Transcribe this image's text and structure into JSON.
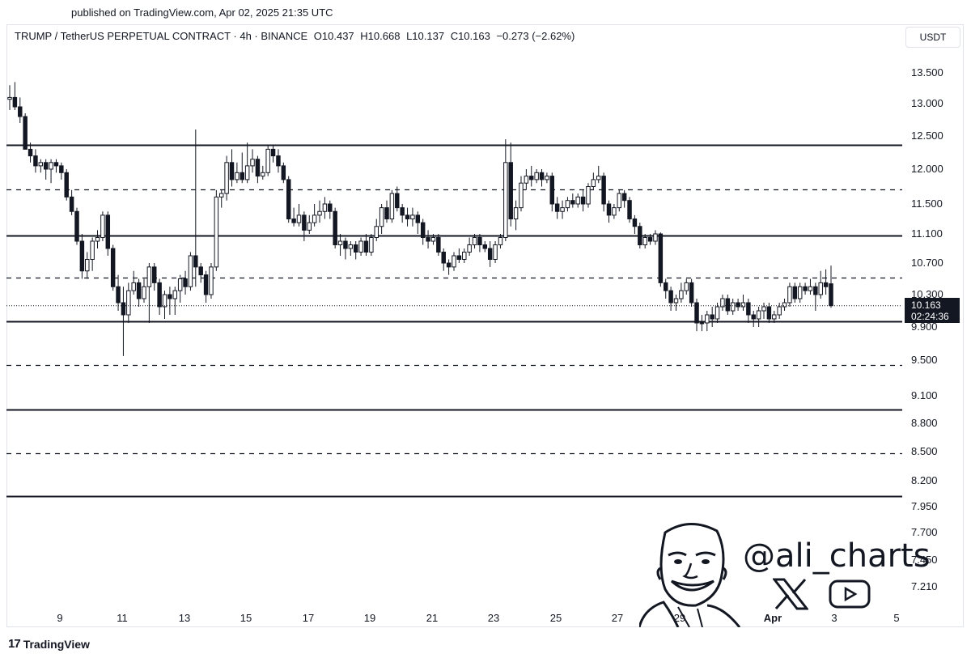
{
  "header": {
    "published": "published on TradingView.com, Apr 02, 2025 21:35 UTC",
    "symbol": "TRUMP / TetherUS PERPETUAL CONTRACT · 4h · BINANCE",
    "open": "O10.437",
    "high": "H10.668",
    "low": "L10.137",
    "close": "C10.163",
    "change": "−0.273 (−2.62%)"
  },
  "unit_label": "USDT",
  "price_tag": {
    "price": "10.163",
    "countdown": "02:24:36"
  },
  "footer": {
    "brand": "TradingView"
  },
  "watermark": {
    "handle": "@ali_charts",
    "icons": [
      "x-logo-icon",
      "youtube-icon",
      "avatar-caricature"
    ]
  },
  "chart_data": {
    "type": "candlestick",
    "title": "",
    "timeframe": "4h",
    "y_ticks": [
      13.5,
      13.0,
      12.5,
      12.0,
      11.5,
      11.1,
      10.7,
      10.3,
      9.9,
      9.5,
      9.1,
      8.8,
      8.5,
      8.2,
      7.95,
      7.7,
      7.45,
      7.21
    ],
    "y_tick_labels": [
      "13.500",
      "13.000",
      "12.500",
      "12.000",
      "11.500",
      "11.100",
      "10.700",
      "10.300",
      "9.900",
      "9.500",
      "9.100",
      "8.800",
      "8.500",
      "8.200",
      "7.950",
      "7.700",
      "7.450",
      "7.210"
    ],
    "x_ticks": [
      "9",
      "11",
      "13",
      "15",
      "17",
      "19",
      "21",
      "23",
      "25",
      "27",
      "29",
      "Apr",
      "3",
      "5"
    ],
    "levels": [
      {
        "price": 12.37,
        "style": "solid"
      },
      {
        "price": 11.71,
        "style": "dashed"
      },
      {
        "price": 11.08,
        "style": "solid"
      },
      {
        "price": 10.52,
        "style": "dashed"
      },
      {
        "price": 9.97,
        "style": "solid"
      },
      {
        "price": 9.45,
        "style": "dashed"
      },
      {
        "price": 8.95,
        "style": "solid"
      },
      {
        "price": 8.48,
        "style": "dashed"
      },
      {
        "price": 8.05,
        "style": "solid"
      }
    ],
    "last_price": 10.163,
    "candles": [
      [
        13.07,
        13.1,
        13.3,
        12.9
      ],
      [
        13.1,
        12.95,
        13.35,
        12.9
      ],
      [
        12.95,
        12.8,
        13.1,
        12.7
      ],
      [
        12.8,
        12.3,
        12.85,
        12.3
      ],
      [
        12.3,
        12.2,
        12.4,
        12.1
      ],
      [
        12.2,
        12.05,
        12.3,
        11.95
      ],
      [
        12.05,
        12.1,
        12.15,
        11.95
      ],
      [
        12.1,
        12.0,
        12.15,
        11.85
      ],
      [
        12.0,
        12.1,
        12.15,
        11.8
      ],
      [
        12.1,
        12.05,
        12.15,
        11.95
      ],
      [
        12.05,
        11.95,
        12.1,
        11.85
      ],
      [
        11.95,
        11.6,
        12.0,
        11.55
      ],
      [
        11.6,
        11.4,
        11.7,
        11.35
      ],
      [
        11.4,
        11.0,
        11.45,
        10.95
      ],
      [
        11.0,
        10.6,
        11.1,
        10.5
      ],
      [
        10.6,
        10.75,
        10.85,
        10.5
      ],
      [
        10.75,
        11.0,
        11.05,
        10.6
      ],
      [
        11.0,
        11.05,
        11.15,
        10.9
      ],
      [
        11.05,
        11.35,
        11.4,
        11.0
      ],
      [
        11.35,
        10.9,
        11.4,
        10.8
      ],
      [
        10.9,
        10.4,
        10.95,
        10.35
      ],
      [
        10.4,
        10.2,
        10.55,
        10.1
      ],
      [
        10.2,
        10.05,
        10.4,
        9.55
      ],
      [
        10.05,
        10.35,
        10.45,
        9.95
      ],
      [
        10.35,
        10.45,
        10.6,
        10.3
      ],
      [
        10.45,
        10.25,
        10.5,
        10.15
      ],
      [
        10.25,
        10.4,
        10.5,
        10.2
      ],
      [
        10.4,
        10.65,
        10.7,
        9.95
      ],
      [
        10.65,
        10.45,
        10.7,
        10.35
      ],
      [
        10.45,
        10.15,
        10.5,
        10.05
      ],
      [
        10.15,
        10.3,
        10.35,
        10.0
      ],
      [
        10.3,
        10.25,
        10.4,
        10.05
      ],
      [
        10.25,
        10.35,
        10.4,
        10.05
      ],
      [
        10.35,
        10.5,
        10.55,
        10.2
      ],
      [
        10.5,
        10.4,
        10.6,
        10.3
      ],
      [
        10.4,
        10.8,
        10.85,
        10.35
      ],
      [
        10.8,
        10.65,
        12.6,
        10.4
      ],
      [
        10.65,
        10.55,
        10.7,
        10.45
      ],
      [
        10.55,
        10.3,
        10.6,
        10.2
      ],
      [
        10.3,
        10.65,
        10.7,
        10.25
      ],
      [
        10.65,
        11.6,
        11.7,
        10.6
      ],
      [
        11.6,
        11.65,
        11.7,
        11.45
      ],
      [
        11.65,
        12.1,
        12.2,
        11.55
      ],
      [
        12.1,
        11.85,
        12.3,
        11.75
      ],
      [
        11.85,
        11.95,
        12.1,
        11.8
      ],
      [
        11.95,
        11.85,
        12.25,
        11.8
      ],
      [
        11.85,
        12.05,
        12.4,
        11.8
      ],
      [
        12.05,
        12.15,
        12.3,
        11.95
      ],
      [
        12.15,
        11.9,
        12.2,
        11.8
      ],
      [
        11.9,
        11.95,
        12.05,
        11.85
      ],
      [
        11.95,
        12.3,
        12.35,
        11.9
      ],
      [
        12.3,
        12.2,
        12.35,
        12.1
      ],
      [
        12.2,
        12.05,
        12.3,
        11.95
      ],
      [
        12.05,
        11.85,
        12.1,
        11.8
      ],
      [
        11.85,
        11.3,
        11.9,
        11.25
      ],
      [
        11.3,
        11.25,
        11.45,
        11.2
      ],
      [
        11.25,
        11.35,
        11.5,
        11.2
      ],
      [
        11.35,
        11.15,
        11.4,
        11.0
      ],
      [
        11.15,
        11.25,
        11.35,
        11.1
      ],
      [
        11.25,
        11.35,
        11.5,
        11.2
      ],
      [
        11.35,
        11.4,
        11.55,
        11.25
      ],
      [
        11.4,
        11.5,
        11.6,
        11.3
      ],
      [
        11.5,
        11.4,
        11.55,
        11.3
      ],
      [
        11.4,
        10.95,
        11.45,
        10.9
      ],
      [
        10.95,
        11.0,
        11.1,
        10.8
      ],
      [
        11.0,
        10.9,
        11.05,
        10.75
      ],
      [
        10.9,
        10.95,
        11.0,
        10.8
      ],
      [
        10.95,
        10.85,
        11.0,
        10.75
      ],
      [
        10.85,
        11.0,
        11.05,
        10.8
      ],
      [
        11.0,
        10.85,
        11.1,
        10.8
      ],
      [
        10.85,
        11.05,
        11.1,
        10.8
      ],
      [
        11.05,
        11.2,
        11.3,
        11.0
      ],
      [
        11.2,
        11.45,
        11.5,
        11.1
      ],
      [
        11.45,
        11.3,
        11.55,
        11.25
      ],
      [
        11.3,
        11.65,
        11.7,
        11.25
      ],
      [
        11.65,
        11.45,
        11.75,
        11.4
      ],
      [
        11.45,
        11.35,
        11.5,
        11.25
      ],
      [
        11.35,
        11.3,
        11.45,
        11.2
      ],
      [
        11.3,
        11.35,
        11.45,
        11.2
      ],
      [
        11.35,
        11.25,
        11.4,
        11.1
      ],
      [
        11.25,
        11.05,
        11.3,
        10.95
      ],
      [
        11.05,
        11.0,
        11.15,
        10.9
      ],
      [
        11.0,
        11.05,
        11.1,
        10.95
      ],
      [
        11.05,
        10.85,
        11.1,
        10.8
      ],
      [
        10.85,
        10.7,
        10.9,
        10.6
      ],
      [
        10.7,
        10.65,
        10.75,
        10.55
      ],
      [
        10.65,
        10.8,
        10.85,
        10.6
      ],
      [
        10.8,
        10.75,
        10.9,
        10.7
      ],
      [
        10.75,
        10.85,
        10.9,
        10.7
      ],
      [
        10.85,
        10.95,
        11.05,
        10.8
      ],
      [
        10.95,
        11.05,
        11.1,
        10.9
      ],
      [
        11.05,
        10.95,
        11.1,
        10.85
      ],
      [
        10.95,
        10.9,
        11.0,
        10.85
      ],
      [
        10.9,
        10.75,
        11.0,
        10.65
      ],
      [
        10.75,
        10.95,
        11.0,
        10.7
      ],
      [
        10.95,
        11.05,
        11.1,
        10.9
      ],
      [
        11.05,
        12.1,
        12.45,
        11.0
      ],
      [
        12.1,
        11.3,
        12.4,
        11.2
      ],
      [
        11.3,
        11.45,
        11.55,
        11.15
      ],
      [
        11.45,
        11.8,
        11.9,
        11.4
      ],
      [
        11.8,
        11.9,
        12.0,
        11.7
      ],
      [
        11.9,
        11.85,
        12.05,
        11.75
      ],
      [
        11.85,
        11.95,
        12.0,
        11.8
      ],
      [
        11.95,
        11.85,
        12.0,
        11.75
      ],
      [
        11.85,
        11.9,
        11.95,
        11.8
      ],
      [
        11.9,
        11.5,
        11.95,
        11.4
      ],
      [
        11.5,
        11.4,
        11.6,
        11.3
      ],
      [
        11.4,
        11.45,
        11.55,
        11.3
      ],
      [
        11.45,
        11.55,
        11.6,
        11.4
      ],
      [
        11.55,
        11.5,
        11.65,
        11.45
      ],
      [
        11.5,
        11.6,
        11.65,
        11.45
      ],
      [
        11.6,
        11.5,
        11.7,
        11.4
      ],
      [
        11.5,
        11.75,
        11.8,
        11.45
      ],
      [
        11.75,
        11.85,
        11.95,
        11.7
      ],
      [
        11.85,
        11.9,
        12.05,
        11.8
      ],
      [
        11.9,
        11.5,
        11.95,
        11.4
      ],
      [
        11.5,
        11.35,
        11.55,
        11.25
      ],
      [
        11.35,
        11.45,
        11.5,
        11.3
      ],
      [
        11.45,
        11.65,
        11.7,
        11.4
      ],
      [
        11.65,
        11.55,
        11.7,
        11.45
      ],
      [
        11.55,
        11.3,
        11.6,
        11.25
      ],
      [
        11.3,
        11.2,
        11.35,
        11.1
      ],
      [
        11.2,
        10.95,
        11.25,
        10.9
      ],
      [
        10.95,
        11.05,
        11.1,
        10.9
      ],
      [
        11.05,
        11.0,
        11.1,
        10.95
      ],
      [
        11.0,
        11.1,
        11.15,
        10.95
      ],
      [
        11.1,
        10.45,
        11.12,
        10.4
      ],
      [
        10.45,
        10.35,
        10.5,
        10.25
      ],
      [
        10.35,
        10.2,
        10.4,
        10.1
      ],
      [
        10.2,
        10.25,
        10.3,
        10.1
      ],
      [
        10.25,
        10.35,
        10.45,
        10.2
      ],
      [
        10.35,
        10.45,
        10.5,
        10.3
      ],
      [
        10.45,
        10.2,
        10.5,
        10.15
      ],
      [
        10.2,
        9.95,
        10.25,
        9.85
      ],
      [
        9.95,
        9.95,
        10.05,
        9.85
      ],
      [
        9.95,
        10.05,
        10.1,
        9.85
      ],
      [
        10.05,
        10.0,
        10.15,
        9.9
      ],
      [
        10.0,
        10.15,
        10.2,
        9.95
      ],
      [
        10.15,
        10.25,
        10.3,
        10.1
      ],
      [
        10.25,
        10.1,
        10.3,
        10.05
      ],
      [
        10.1,
        10.2,
        10.25,
        10.05
      ],
      [
        10.2,
        10.15,
        10.25,
        10.1
      ],
      [
        10.15,
        10.2,
        10.3,
        10.1
      ],
      [
        10.2,
        10.05,
        10.25,
        9.95
      ],
      [
        10.05,
        10.0,
        10.1,
        9.9
      ],
      [
        10.0,
        10.1,
        10.15,
        9.9
      ],
      [
        10.1,
        10.15,
        10.2,
        10.0
      ],
      [
        10.15,
        10.0,
        10.2,
        9.95
      ],
      [
        10.0,
        10.05,
        10.1,
        9.95
      ],
      [
        10.05,
        10.15,
        10.2,
        10.0
      ],
      [
        10.15,
        10.2,
        10.25,
        10.1
      ],
      [
        10.2,
        10.4,
        10.45,
        10.15
      ],
      [
        10.4,
        10.25,
        10.45,
        10.2
      ],
      [
        10.25,
        10.4,
        10.45,
        10.2
      ],
      [
        10.4,
        10.35,
        10.45,
        10.3
      ],
      [
        10.35,
        10.4,
        10.5,
        10.3
      ],
      [
        10.4,
        10.3,
        10.45,
        10.1
      ],
      [
        10.3,
        10.45,
        10.6,
        10.25
      ],
      [
        10.45,
        10.4,
        10.62,
        10.3
      ],
      [
        10.437,
        10.163,
        10.668,
        10.137
      ]
    ]
  }
}
